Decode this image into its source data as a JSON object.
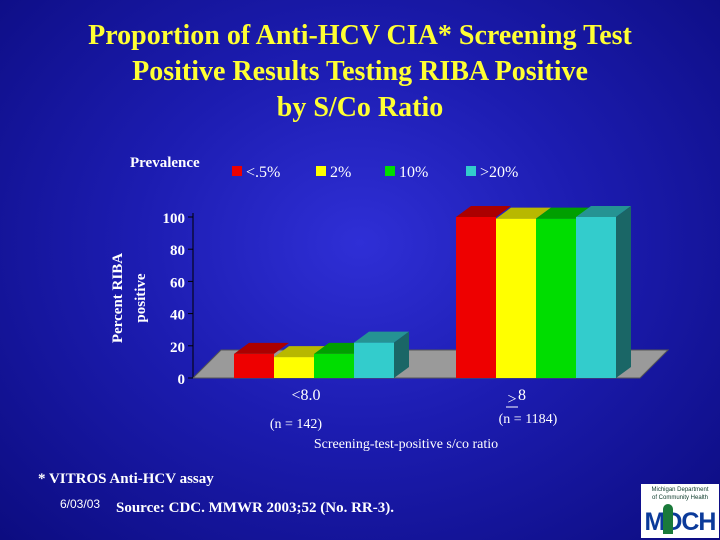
{
  "title_lines": [
    "Proportion of Anti-HCV CIA* Screening Test",
    "Positive Results Testing RIBA Positive",
    "by S/Co Ratio"
  ],
  "chart_data": {
    "type": "bar",
    "categories": [
      "<8.0",
      "8"
    ],
    "category_notes": [
      "(n = 142)",
      "(n = 1184)"
    ],
    "category_prefix": [
      ">"
    ],
    "xlabel": "Screening-test-positive s/co ratio",
    "ylabel_lines": [
      "Percent RIBA",
      "positive"
    ],
    "legend_title": "Prevalence",
    "ylim": [
      0,
      100
    ],
    "yticks": [
      0,
      20,
      40,
      60,
      80,
      100
    ],
    "three_d": true,
    "legend_position": "top",
    "series": [
      {
        "name": "<.5%",
        "values": [
          15,
          100
        ],
        "color": "#ee0000"
      },
      {
        "name": "2%",
        "values": [
          13,
          99
        ],
        "color": "#ffff00"
      },
      {
        "name": "10%",
        "values": [
          15,
          99
        ],
        "color": "#00dd00"
      },
      {
        "name": ">20%",
        "values": [
          22,
          100
        ],
        "color": "#33cccc"
      }
    ]
  },
  "footnote": "* VITROS Anti-HCV assay",
  "date": "6/03/03",
  "source": "Source: CDC. MMWR 2003;52 (No. RR-3).",
  "logo": {
    "line1": "Michigan Department",
    "line2": "of Community Health",
    "wordmark": "MDCH"
  }
}
